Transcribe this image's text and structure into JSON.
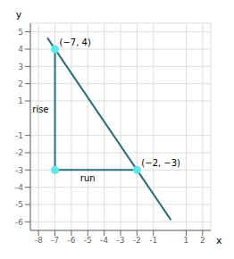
{
  "chart_data": {
    "type": "scatter",
    "xlabel": "x",
    "ylabel": "y",
    "xlim": [
      -8.5,
      2.5
    ],
    "ylim": [
      -6.5,
      5.5
    ],
    "xticks": [
      -8,
      -7,
      -6,
      -5,
      -4,
      -3,
      -2,
      -1,
      1,
      2
    ],
    "yticks": [
      -6,
      -5,
      -4,
      -3,
      -2,
      -1,
      1,
      2,
      3,
      4,
      5
    ],
    "grid": true,
    "series": [
      {
        "type": "line",
        "color": "#2a6e80",
        "x": [
          -7.464285714285714,
          0.07142857142857142
        ],
        "values": [
          4.65,
          -5.9
        ]
      },
      {
        "type": "line",
        "color": "#2a6e80",
        "x": [
          -7,
          -7,
          -2
        ],
        "values": [
          4,
          -3,
          -3
        ]
      },
      {
        "type": "scatter",
        "color": "#5ce8e8",
        "x": [
          -7,
          -2,
          -7
        ],
        "values": [
          4,
          -3,
          -3
        ]
      }
    ],
    "annotations": [
      {
        "text": "(−7, 4)",
        "x": -7,
        "y": 4
      },
      {
        "text": "(−2, −3)",
        "x": -2,
        "y": -3
      },
      {
        "text": "rise",
        "x": -7,
        "y": 0.5
      },
      {
        "text": "run",
        "x": -5,
        "y": -3
      }
    ]
  }
}
